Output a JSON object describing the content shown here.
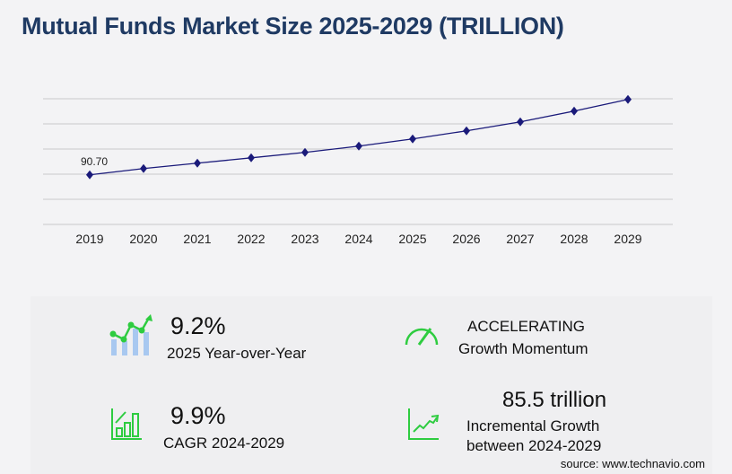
{
  "title": "Mutual Funds Market Size 2025-2029 (TRILLION)",
  "chart_data": {
    "type": "line",
    "title": "Mutual Funds Market Size 2025-2029 (TRILLION)",
    "categories": [
      "2019",
      "2020",
      "2021",
      "2022",
      "2023",
      "2024",
      "2025",
      "2026",
      "2027",
      "2028",
      "2029"
    ],
    "values": [
      90.7,
      102.2,
      112.1,
      121.9,
      131.8,
      143.3,
      156.5,
      171.3,
      187.7,
      207.4,
      228.8
    ],
    "data_labels": {
      "2019": "90.70"
    },
    "ylim": [
      0,
      230
    ],
    "grid": true,
    "line_color": "#1a1a7a",
    "marker": "diamond"
  },
  "stats": {
    "yoy_value": "9.2%",
    "yoy_label": "2025 Year-over-Year",
    "momentum_value": "ACCELERATING",
    "momentum_label": "Growth Momentum",
    "cagr_value": "9.9%",
    "cagr_label": "CAGR 2024-2029",
    "incremental_value": "85.5 trillion",
    "incremental_label1": "Incremental Growth",
    "incremental_label2": "between 2024-2029"
  },
  "source": "source: www.technavio.com",
  "colors": {
    "title": "#1f3a63",
    "accent_green": "#2ecc40",
    "bar_blue": "#a8c8f0"
  }
}
